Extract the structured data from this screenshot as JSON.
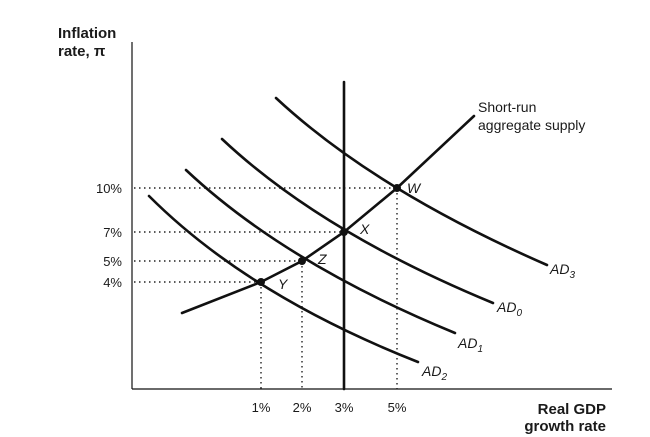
{
  "y_axis": {
    "title_line1": "Inflation",
    "title_line2": "rate, π"
  },
  "x_axis": {
    "title_line1": "Real GDP",
    "title_line2": "growth rate"
  },
  "y_ticks": [
    "10%",
    "7%",
    "5%",
    "4%"
  ],
  "x_ticks": [
    "1%",
    "2%",
    "3%",
    "5%"
  ],
  "sras": {
    "label_line1": "Short-run",
    "label_line2": "aggregate supply"
  },
  "curves": [
    {
      "base": "AD",
      "sub": "3"
    },
    {
      "base": "AD",
      "sub": "0"
    },
    {
      "base": "AD",
      "sub": "1"
    },
    {
      "base": "AD",
      "sub": "2"
    }
  ],
  "points": [
    {
      "name": "W",
      "growth": 5,
      "inflation": 10
    },
    {
      "name": "X",
      "growth": 3,
      "inflation": 7
    },
    {
      "name": "Z",
      "growth": 2,
      "inflation": 5
    },
    {
      "name": "Y",
      "growth": 1,
      "inflation": 4
    }
  ]
}
